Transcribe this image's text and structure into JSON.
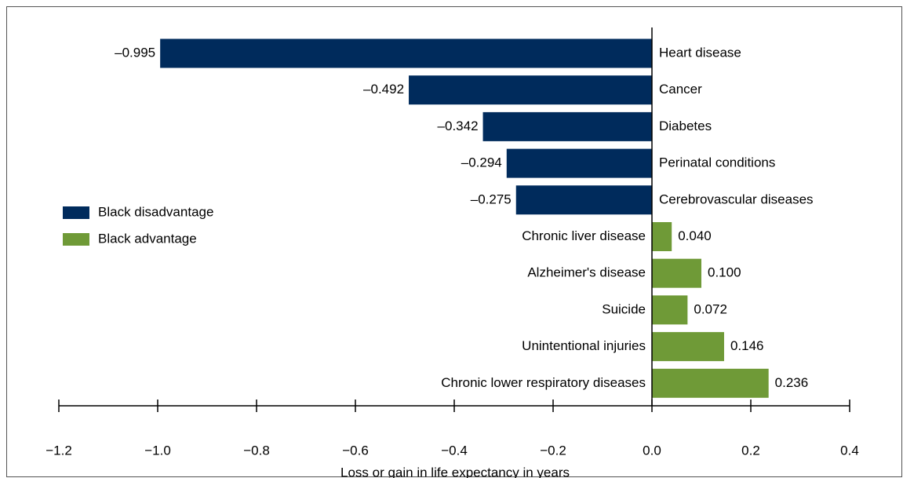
{
  "chart_data": {
    "type": "bar",
    "orientation": "horizontal",
    "x_label": "Loss or gain in life expectancy in years",
    "categories": [
      "Heart disease",
      "Cancer",
      "Diabetes",
      "Perinatal conditions",
      "Cerebrovascular diseases",
      "Chronic liver disease",
      "Alzheimer's disease",
      "Suicide",
      "Unintentional injuries",
      "Chronic lower respiratory diseases"
    ],
    "series": [
      {
        "name": "Black disadvantage",
        "color": "#002b5c",
        "values": [
          -0.995,
          -0.492,
          -0.342,
          -0.294,
          -0.275,
          null,
          null,
          null,
          null,
          null
        ],
        "value_labels": [
          "–0.995",
          "–0.492",
          "–0.342",
          "–0.294",
          "–0.275",
          null,
          null,
          null,
          null,
          null
        ]
      },
      {
        "name": "Black advantage",
        "color": "#6f9a37",
        "values": [
          null,
          null,
          null,
          null,
          null,
          0.04,
          0.1,
          0.072,
          0.146,
          0.236
        ],
        "value_labels": [
          null,
          null,
          null,
          null,
          null,
          "0.040",
          "0.100",
          "0.072",
          "0.146",
          "0.236"
        ]
      }
    ],
    "xlim": [
      -1.2,
      0.4
    ],
    "xticks": [
      {
        "value": -1.2,
        "label": "−1.2"
      },
      {
        "value": -1.0,
        "label": "−1.0"
      },
      {
        "value": -0.8,
        "label": "−0.8"
      },
      {
        "value": -0.6,
        "label": "−0.6"
      },
      {
        "value": -0.4,
        "label": "−0.4"
      },
      {
        "value": -0.2,
        "label": "−0.2"
      },
      {
        "value": 0,
        "label": "0.0"
      },
      {
        "value": 0.2,
        "label": "0.2"
      },
      {
        "value": 0.4,
        "label": "0.4"
      }
    ],
    "legend": "left"
  }
}
